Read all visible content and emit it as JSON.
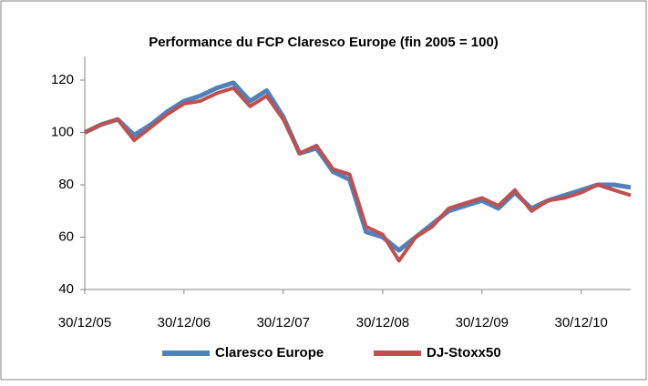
{
  "chart_data": {
    "type": "line",
    "title": "Performance du FCP Claresco Europe (fin 2005 = 100)",
    "x": [
      "30/12/05",
      "28/02/06",
      "30/04/06",
      "30/06/06",
      "30/08/06",
      "30/10/06",
      "30/12/06",
      "28/02/07",
      "30/04/07",
      "30/06/07",
      "30/08/07",
      "30/10/07",
      "30/12/07",
      "28/02/08",
      "30/04/08",
      "30/06/08",
      "30/08/08",
      "30/10/08",
      "30/12/08",
      "28/02/09",
      "30/04/09",
      "30/06/09",
      "30/08/09",
      "30/10/09",
      "30/12/09",
      "28/02/10",
      "30/04/10",
      "30/06/10",
      "30/08/10",
      "30/10/10",
      "30/12/10",
      "28/02/11",
      "30/04/11",
      "30/06/11"
    ],
    "series": [
      {
        "name": "Claresco Europe",
        "color": "#4f81bd",
        "values": [
          100,
          103,
          105,
          99,
          103,
          108,
          112,
          114,
          117,
          119,
          112,
          116,
          106,
          92,
          94,
          85,
          82,
          62,
          60,
          55,
          60,
          65,
          70,
          72,
          74,
          71,
          77,
          71,
          74,
          76,
          78,
          80,
          80,
          79
        ]
      },
      {
        "name": "DJ-Stoxx50",
        "color": "#c0504d",
        "values": [
          100,
          103,
          105,
          97,
          102,
          107,
          111,
          112,
          115,
          117,
          110,
          114,
          105,
          92,
          95,
          86,
          84,
          64,
          61,
          51,
          60,
          64,
          71,
          73,
          75,
          72,
          78,
          70,
          74,
          75,
          77,
          80,
          78,
          76
        ]
      }
    ],
    "xlim": [
      "30/12/05",
      "30/06/11"
    ],
    "xticks": [
      "30/12/05",
      "30/12/06",
      "30/12/07",
      "30/12/08",
      "30/12/09",
      "30/12/10"
    ],
    "ylim": [
      40,
      120
    ],
    "yticks": [
      40,
      60,
      80,
      100,
      120
    ],
    "grid": false,
    "legend": "bottom"
  }
}
